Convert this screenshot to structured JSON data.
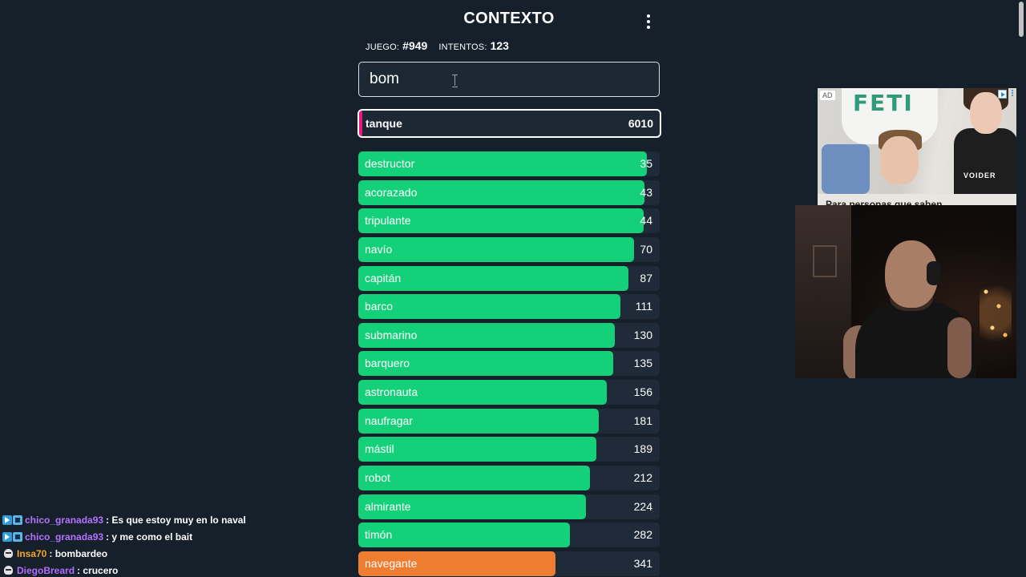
{
  "game": {
    "title": "CONTEXTO",
    "game_label": "JUEGO:",
    "game_number": "#949",
    "attempts_label": "INTENTOS:",
    "attempts": "123",
    "input_value": "bom",
    "last_guess": {
      "word": "tanque",
      "rank": "6010"
    },
    "guesses": [
      {
        "word": "destructor",
        "rank": "35",
        "fill": 0.958,
        "color": "#14d179"
      },
      {
        "word": "acorazado",
        "rank": "43",
        "fill": 0.949,
        "color": "#14d179"
      },
      {
        "word": "tripulante",
        "rank": "44",
        "fill": 0.947,
        "color": "#14d179"
      },
      {
        "word": "navío",
        "rank": "70",
        "fill": 0.915,
        "color": "#14d179"
      },
      {
        "word": "capitán",
        "rank": "87",
        "fill": 0.896,
        "color": "#14d179"
      },
      {
        "word": "barco",
        "rank": "111",
        "fill": 0.87,
        "color": "#14d179"
      },
      {
        "word": "submarino",
        "rank": "130",
        "fill": 0.851,
        "color": "#14d179"
      },
      {
        "word": "barquero",
        "rank": "135",
        "fill": 0.846,
        "color": "#14d179"
      },
      {
        "word": "astronauta",
        "rank": "156",
        "fill": 0.825,
        "color": "#14d179"
      },
      {
        "word": "naufragar",
        "rank": "181",
        "fill": 0.798,
        "color": "#14d179"
      },
      {
        "word": "mástil",
        "rank": "189",
        "fill": 0.79,
        "color": "#14d179"
      },
      {
        "word": "robot",
        "rank": "212",
        "fill": 0.768,
        "color": "#14d179"
      },
      {
        "word": "almirante",
        "rank": "224",
        "fill": 0.755,
        "color": "#14d179"
      },
      {
        "word": "timón",
        "rank": "282",
        "fill": 0.702,
        "color": "#14d179"
      },
      {
        "word": "navegante",
        "rank": "341",
        "fill": 0.654,
        "color": "#ef7d31"
      }
    ]
  },
  "ad": {
    "badge": "AD",
    "brand_mark": "FETI",
    "top_text": "VOIDER",
    "caption": "Para personas que saben"
  },
  "chat": [
    {
      "badges": [
        "prime",
        "sub"
      ],
      "user": "chico_granada93",
      "user_color": "#b472ff",
      "message": ": Es que estoy muy en lo naval"
    },
    {
      "badges": [
        "prime",
        "sub"
      ],
      "user": "chico_granada93",
      "user_color": "#b472ff",
      "message": ": y me como el bait"
    },
    {
      "badges": [
        "skull"
      ],
      "user": "Insa70",
      "user_color": "#f5a623",
      "message": ": bombardeo"
    },
    {
      "badges": [
        "skull"
      ],
      "user": "DiegoBreard",
      "user_color": "#b46cff",
      "message": ": crucero"
    }
  ],
  "colors": {
    "background": "#15202b",
    "close": "#14d179",
    "medium": "#ef7d31",
    "last_guess_accent": "#f0177c"
  }
}
